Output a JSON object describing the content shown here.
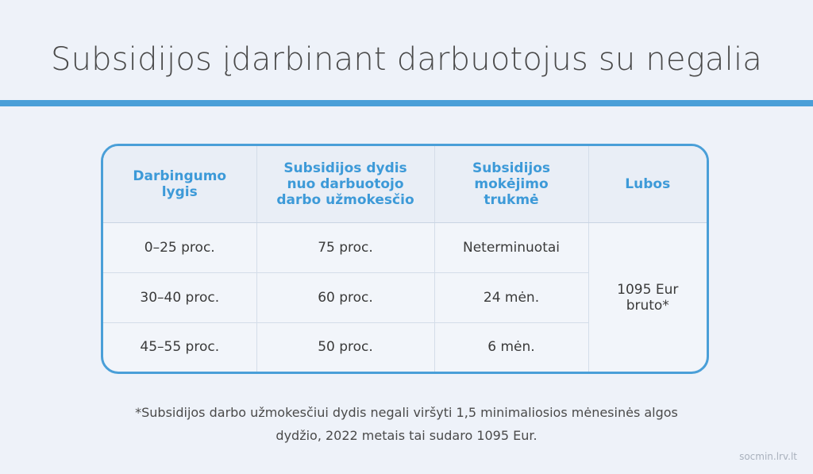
{
  "title": "Subsidijos įdarbinant darbuotojus su negalia",
  "table": {
    "headers": [
      [
        "Darbingumo",
        "lygis"
      ],
      [
        "Subsidijos dydis",
        "nuo darbuotojo",
        "darbo užmokesčio"
      ],
      [
        "Subsidijos",
        "mokėjimo",
        "trukmė"
      ],
      [
        "Lubos"
      ]
    ],
    "rows": [
      [
        "0–25 proc.",
        "75 proc.",
        "Neterminuotai"
      ],
      [
        "30–40 proc.",
        "60 proc.",
        "24 mėn."
      ],
      [
        "45–55 proc.",
        "50 proc.",
        "6 mėn."
      ]
    ],
    "ceiling": [
      "1095 Eur",
      "bruto*"
    ]
  },
  "footnote": [
    "*Subsidijos darbo užmokesčiui dydis negali viršyti 1,5 minimaliosios mėnesinės algos",
    "dydžio, 2022 metais tai sudaro 1095 Eur."
  ],
  "source": "socmin.lrv.lt",
  "colors": {
    "accent": "#4a9fd8",
    "header_text": "#3d9ad8",
    "background": "#eef2f9"
  }
}
